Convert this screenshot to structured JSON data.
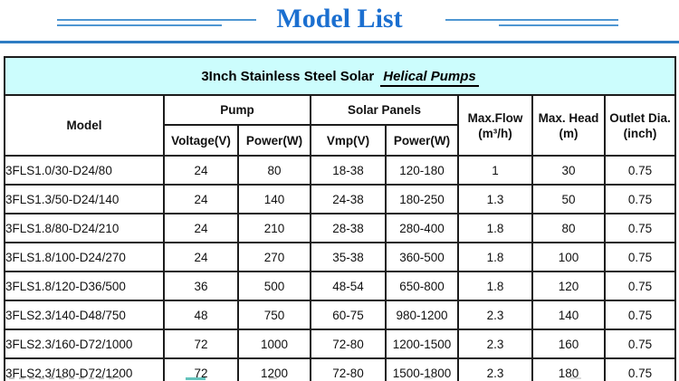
{
  "header": {
    "title": "Model List",
    "accent_color": "#1b6fd0",
    "rule_color": "#2d7cc3",
    "deco_line_color": "#4e96d2"
  },
  "table": {
    "caption_prefix": "3Inch Stainless Steel Solar",
    "caption_emphasis": "Helical Pumps",
    "caption_bg": "#ccfdfd",
    "border_color": "#1c1c1c",
    "columns": {
      "model": "Model",
      "pump_group": "Pump",
      "solar_group": "Solar Panels",
      "pump_voltage": "Voltage(V)",
      "pump_power": "Power(W)",
      "solar_vmp": "Vmp(V)",
      "solar_power": "Power(W)",
      "max_flow_line1": "Max.Flow",
      "max_flow_line2": "(m³/h)",
      "max_head_line1": "Max. Head",
      "max_head_line2": "(m)",
      "outlet_line1": "Outlet Dia.",
      "outlet_line2": "(inch)"
    },
    "rows": [
      {
        "cells": [
          "3FLS1.0/30-D24/80",
          "24",
          "80",
          "18-38",
          "120-180",
          "1",
          "30",
          "0.75"
        ]
      },
      {
        "cells": [
          "3FLS1.3/50-D24/140",
          "24",
          "140",
          "24-38",
          "180-250",
          "1.3",
          "50",
          "0.75"
        ]
      },
      {
        "cells": [
          "3FLS1.8/80-D24/210",
          "24",
          "210",
          "28-38",
          "280-400",
          "1.8",
          "80",
          "0.75"
        ]
      },
      {
        "cells": [
          "3FLS1.8/100-D24/270",
          "24",
          "270",
          "35-38",
          "360-500",
          "1.8",
          "100",
          "0.75"
        ]
      },
      {
        "cells": [
          "3FLS1.8/120-D36/500",
          "36",
          "500",
          "48-54",
          "650-800",
          "1.8",
          "120",
          "0.75"
        ]
      },
      {
        "cells": [
          "3FLS2.3/140-D48/750",
          "48",
          "750",
          "60-75",
          "980-1200",
          "2.3",
          "140",
          "0.75"
        ]
      },
      {
        "cells": [
          "3FLS2.3/160-D72/1000",
          "72",
          "1000",
          "72-80",
          "1200-1500",
          "2.3",
          "160",
          "0.75"
        ]
      },
      {
        "cells": [
          "3FLS2.3/180-D72/1200",
          "72",
          "1200",
          "72-80",
          "1500-1800",
          "2.3",
          "180",
          "0.75"
        ]
      }
    ]
  }
}
